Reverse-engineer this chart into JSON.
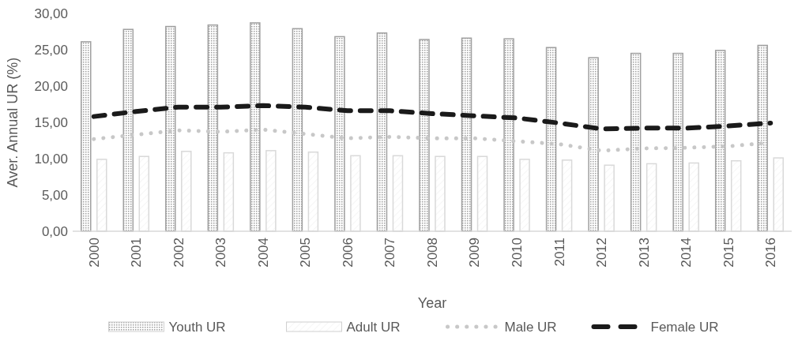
{
  "chart_data": {
    "type": "bar",
    "xlabel": "Year",
    "ylabel": "Aver. Annual UR (%)",
    "categories": [
      "2000",
      "2001",
      "2002",
      "2003",
      "2004",
      "2005",
      "2006",
      "2007",
      "2008",
      "2009",
      "2010",
      "2011",
      "2012",
      "2013",
      "2014",
      "2015",
      "2016"
    ],
    "series": [
      {
        "name": "Youth UR",
        "color": "#a0a0a0",
        "values": [
          26.1,
          27.8,
          28.2,
          28.4,
          28.7,
          27.9,
          26.8,
          27.3,
          26.4,
          26.6,
          26.5,
          25.3,
          23.9,
          24.5,
          24.5,
          24.9,
          25.6
        ]
      },
      {
        "name": "Adult UR",
        "color": "#d9d9d9",
        "values": [
          9.9,
          10.3,
          11.0,
          10.8,
          11.1,
          10.9,
          10.4,
          10.4,
          10.3,
          10.3,
          9.9,
          9.8,
          9.1,
          9.3,
          9.4,
          9.7,
          10.1
        ]
      },
      {
        "name": "Male UR",
        "type": "line",
        "color": "#c8c8c8",
        "line_style": "dotted",
        "values": [
          12.7,
          13.3,
          13.9,
          13.7,
          14.0,
          13.4,
          12.8,
          13.0,
          12.8,
          12.8,
          12.4,
          12.0,
          11.1,
          11.4,
          11.5,
          11.7,
          12.2
        ]
      },
      {
        "name": "Female UR",
        "type": "line",
        "color": "#1a1a1a",
        "line_style": "dashed",
        "values": [
          15.8,
          16.5,
          17.1,
          17.1,
          17.3,
          17.1,
          16.6,
          16.6,
          16.2,
          15.9,
          15.6,
          14.9,
          14.1,
          14.2,
          14.2,
          14.5,
          14.9
        ]
      }
    ],
    "ylim": [
      0,
      30
    ],
    "yticks": [
      {
        "value": 0,
        "label": "0,00"
      },
      {
        "value": 5,
        "label": "5,00"
      },
      {
        "value": 10,
        "label": "10,00"
      },
      {
        "value": 15,
        "label": "15,00"
      },
      {
        "value": 20,
        "label": "20,00"
      },
      {
        "value": 25,
        "label": "25,00"
      },
      {
        "value": 30,
        "label": "30,00"
      }
    ],
    "grid": false,
    "legend": "bottom",
    "marker": "none"
  }
}
